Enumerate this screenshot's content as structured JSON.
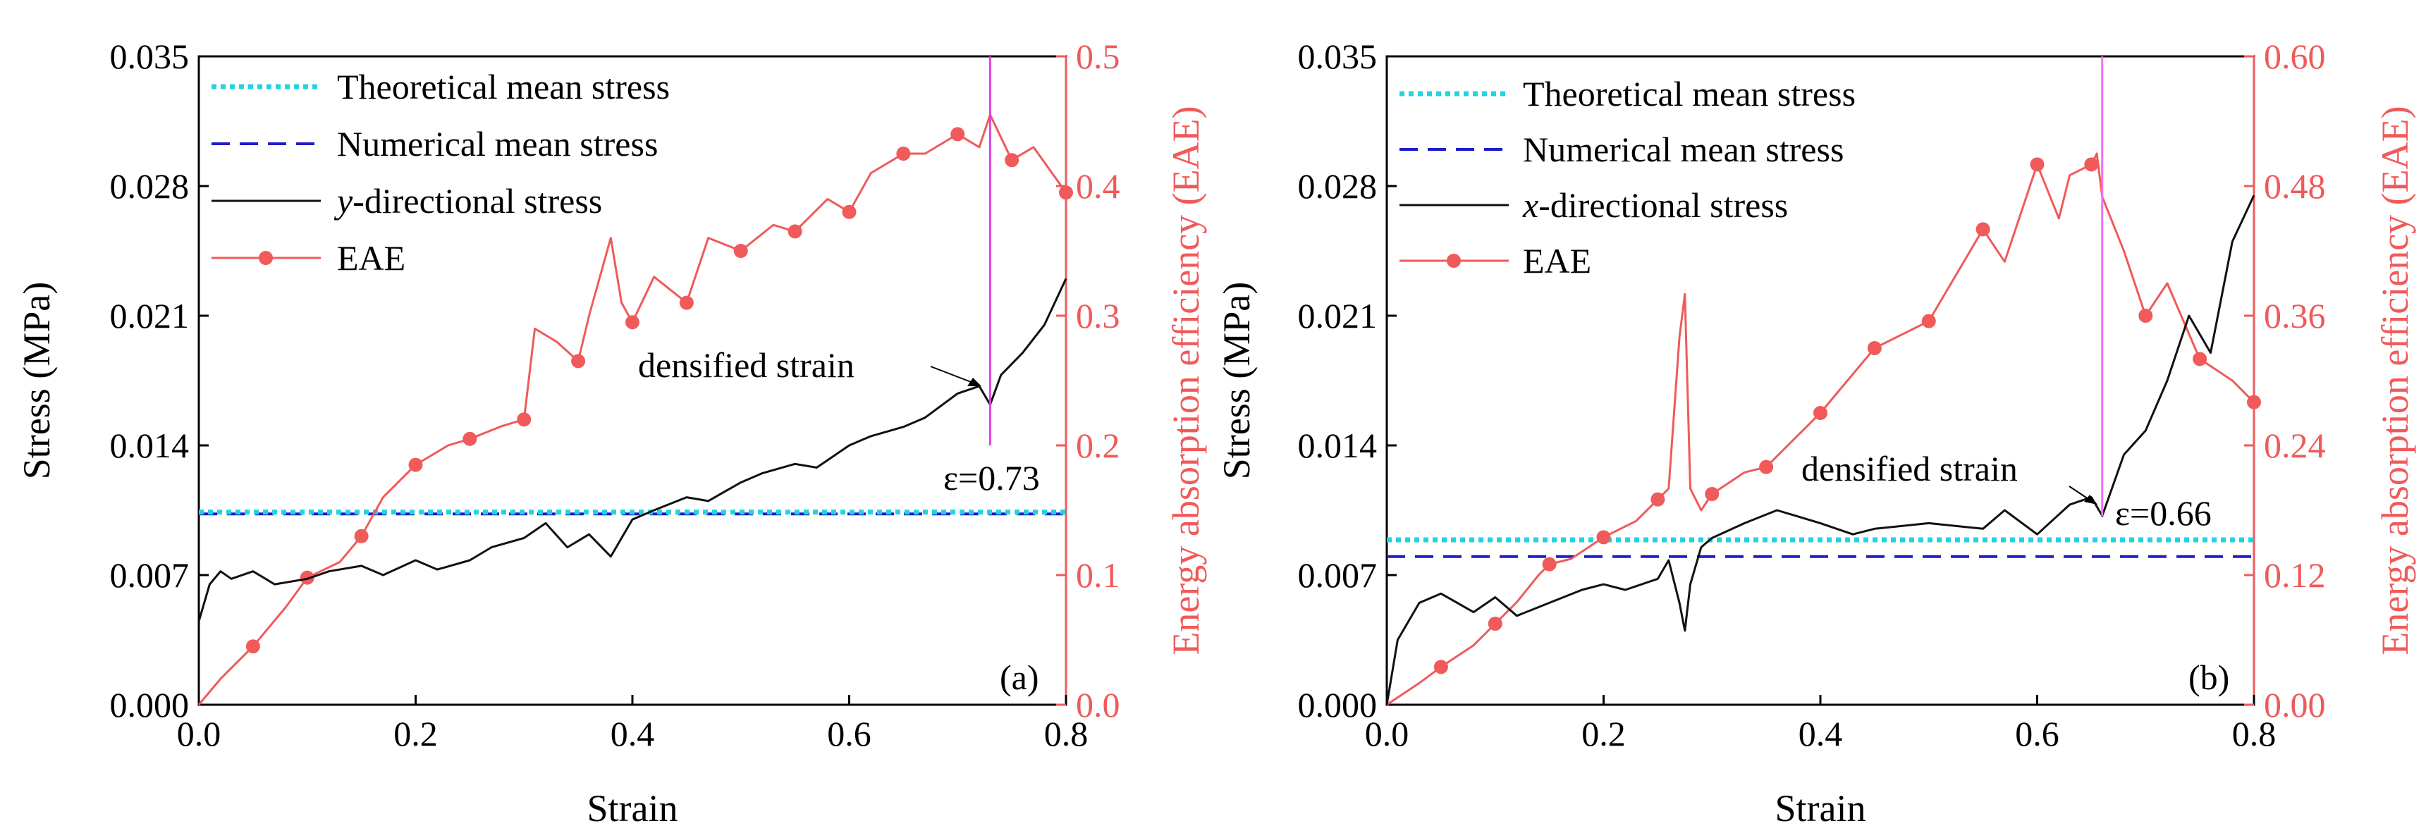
{
  "colors": {
    "axis": "#000000",
    "stress": "#111111",
    "eae": "#f05a5a",
    "theoretical": "#22d3e0",
    "numerical": "#1c1cc8",
    "densified_line": "#e040e0",
    "densified_line_b": "#f070f0"
  },
  "chart_data": [
    {
      "type": "line",
      "panel_label": "(a)",
      "xlabel": "Strain",
      "ylabel": "Stress (MPa)",
      "y2label": "Energy absorption efficiency (EAE)",
      "xlim": [
        0.0,
        0.8
      ],
      "ylim": [
        0.0,
        0.035
      ],
      "y2lim": [
        0.0,
        0.5
      ],
      "x_ticks": [
        "0.0",
        "0.2",
        "0.4",
        "0.6",
        "0.8"
      ],
      "y_ticks": [
        "0.000",
        "0.007",
        "0.014",
        "0.021",
        "0.028",
        "0.035"
      ],
      "y2_ticks": [
        "0.0",
        "0.1",
        "0.2",
        "0.3",
        "0.4",
        "0.5"
      ],
      "legend": {
        "theoretical": "Theoretical mean stress",
        "numerical": "Numerical mean stress",
        "stress_prefix": "y",
        "stress_suffix": "-directional stress",
        "eae": "EAE"
      },
      "theoretical_mean_stress": 0.0104,
      "numerical_mean_stress": 0.0103,
      "densified_strain": 0.73,
      "densified_label": "densified strain",
      "epsilon_label": "ε=0.73",
      "stress_series": {
        "name": "y-directional stress",
        "x": [
          0,
          0.01,
          0.02,
          0.03,
          0.05,
          0.07,
          0.1,
          0.12,
          0.15,
          0.17,
          0.2,
          0.22,
          0.25,
          0.27,
          0.3,
          0.32,
          0.34,
          0.36,
          0.38,
          0.4,
          0.42,
          0.45,
          0.47,
          0.5,
          0.52,
          0.55,
          0.57,
          0.6,
          0.62,
          0.65,
          0.67,
          0.7,
          0.72,
          0.73,
          0.74,
          0.76,
          0.78,
          0.8
        ],
        "y": [
          0.0045,
          0.0065,
          0.0072,
          0.0068,
          0.0072,
          0.0065,
          0.0068,
          0.0072,
          0.0075,
          0.007,
          0.0078,
          0.0073,
          0.0078,
          0.0085,
          0.009,
          0.0098,
          0.0085,
          0.0092,
          0.008,
          0.01,
          0.0105,
          0.0112,
          0.011,
          0.012,
          0.0125,
          0.013,
          0.0128,
          0.014,
          0.0145,
          0.015,
          0.0155,
          0.0168,
          0.0172,
          0.0162,
          0.0178,
          0.019,
          0.0205,
          0.023
        ]
      },
      "eae_series": {
        "name": "EAE",
        "x": [
          0,
          0.02,
          0.05,
          0.08,
          0.1,
          0.13,
          0.15,
          0.17,
          0.2,
          0.23,
          0.25,
          0.28,
          0.3,
          0.31,
          0.33,
          0.35,
          0.36,
          0.38,
          0.39,
          0.4,
          0.42,
          0.45,
          0.47,
          0.5,
          0.53,
          0.55,
          0.58,
          0.6,
          0.62,
          0.65,
          0.67,
          0.7,
          0.72,
          0.73,
          0.75,
          0.77,
          0.8
        ],
        "y": [
          0,
          0.02,
          0.045,
          0.075,
          0.098,
          0.11,
          0.13,
          0.16,
          0.185,
          0.2,
          0.205,
          0.215,
          0.22,
          0.29,
          0.28,
          0.265,
          0.3,
          0.36,
          0.31,
          0.295,
          0.33,
          0.31,
          0.36,
          0.35,
          0.37,
          0.365,
          0.39,
          0.38,
          0.41,
          0.425,
          0.425,
          0.44,
          0.43,
          0.455,
          0.42,
          0.43,
          0.395
        ]
      },
      "eae_markers_x": [
        0.05,
        0.1,
        0.15,
        0.2,
        0.25,
        0.3,
        0.35,
        0.4,
        0.45,
        0.5,
        0.55,
        0.6,
        0.65,
        0.7,
        0.75,
        0.8
      ]
    },
    {
      "type": "line",
      "panel_label": "(b)",
      "xlabel": "Strain",
      "ylabel": "Stress (MPa)",
      "y2label": "Energy absorption efficiency (EAE)",
      "xlim": [
        0.0,
        0.8
      ],
      "ylim": [
        0.0,
        0.035
      ],
      "y2lim": [
        0.0,
        0.6
      ],
      "x_ticks": [
        "0.0",
        "0.2",
        "0.4",
        "0.6",
        "0.8"
      ],
      "y_ticks": [
        "0.000",
        "0.007",
        "0.014",
        "0.021",
        "0.028",
        "0.035"
      ],
      "y2_ticks": [
        "0.00",
        "0.12",
        "0.24",
        "0.36",
        "0.48",
        "0.60"
      ],
      "legend": {
        "theoretical": "Theoretical mean stress",
        "numerical": "Numerical mean stress",
        "stress_prefix": "x",
        "stress_suffix": "-directional stress",
        "eae": "EAE"
      },
      "theoretical_mean_stress": 0.0089,
      "numerical_mean_stress": 0.008,
      "densified_strain": 0.66,
      "densified_label": "densified strain",
      "epsilon_label": "ε=0.66",
      "stress_series": {
        "name": "x-directional stress",
        "x": [
          0,
          0.01,
          0.03,
          0.05,
          0.08,
          0.1,
          0.12,
          0.15,
          0.18,
          0.2,
          0.22,
          0.25,
          0.26,
          0.27,
          0.275,
          0.28,
          0.29,
          0.3,
          0.33,
          0.36,
          0.4,
          0.43,
          0.45,
          0.5,
          0.55,
          0.57,
          0.6,
          0.63,
          0.65,
          0.66,
          0.68,
          0.7,
          0.72,
          0.74,
          0.76,
          0.78,
          0.8
        ],
        "y": [
          0,
          0.0035,
          0.0055,
          0.006,
          0.005,
          0.0058,
          0.0048,
          0.0055,
          0.0062,
          0.0065,
          0.0062,
          0.0068,
          0.0078,
          0.0055,
          0.004,
          0.0065,
          0.0085,
          0.009,
          0.0098,
          0.0105,
          0.0098,
          0.0092,
          0.0095,
          0.0098,
          0.0095,
          0.0105,
          0.0092,
          0.0108,
          0.0112,
          0.0102,
          0.0135,
          0.0148,
          0.0175,
          0.021,
          0.019,
          0.025,
          0.0275
        ]
      },
      "eae_series": {
        "name": "EAE",
        "x": [
          0,
          0.03,
          0.05,
          0.08,
          0.1,
          0.12,
          0.14,
          0.15,
          0.17,
          0.2,
          0.23,
          0.25,
          0.26,
          0.27,
          0.275,
          0.28,
          0.29,
          0.3,
          0.33,
          0.35,
          0.4,
          0.45,
          0.5,
          0.55,
          0.57,
          0.6,
          0.62,
          0.63,
          0.65,
          0.655,
          0.66,
          0.68,
          0.7,
          0.72,
          0.75,
          0.78,
          0.8
        ],
        "y": [
          0,
          0.02,
          0.035,
          0.055,
          0.075,
          0.095,
          0.12,
          0.13,
          0.135,
          0.155,
          0.17,
          0.19,
          0.2,
          0.34,
          0.38,
          0.2,
          0.18,
          0.195,
          0.215,
          0.22,
          0.27,
          0.33,
          0.355,
          0.44,
          0.41,
          0.5,
          0.45,
          0.49,
          0.5,
          0.51,
          0.47,
          0.42,
          0.36,
          0.39,
          0.32,
          0.3,
          0.28
        ]
      },
      "eae_markers_x": [
        0.05,
        0.1,
        0.15,
        0.2,
        0.25,
        0.3,
        0.35,
        0.4,
        0.45,
        0.5,
        0.55,
        0.6,
        0.65,
        0.7,
        0.75,
        0.8
      ]
    }
  ]
}
